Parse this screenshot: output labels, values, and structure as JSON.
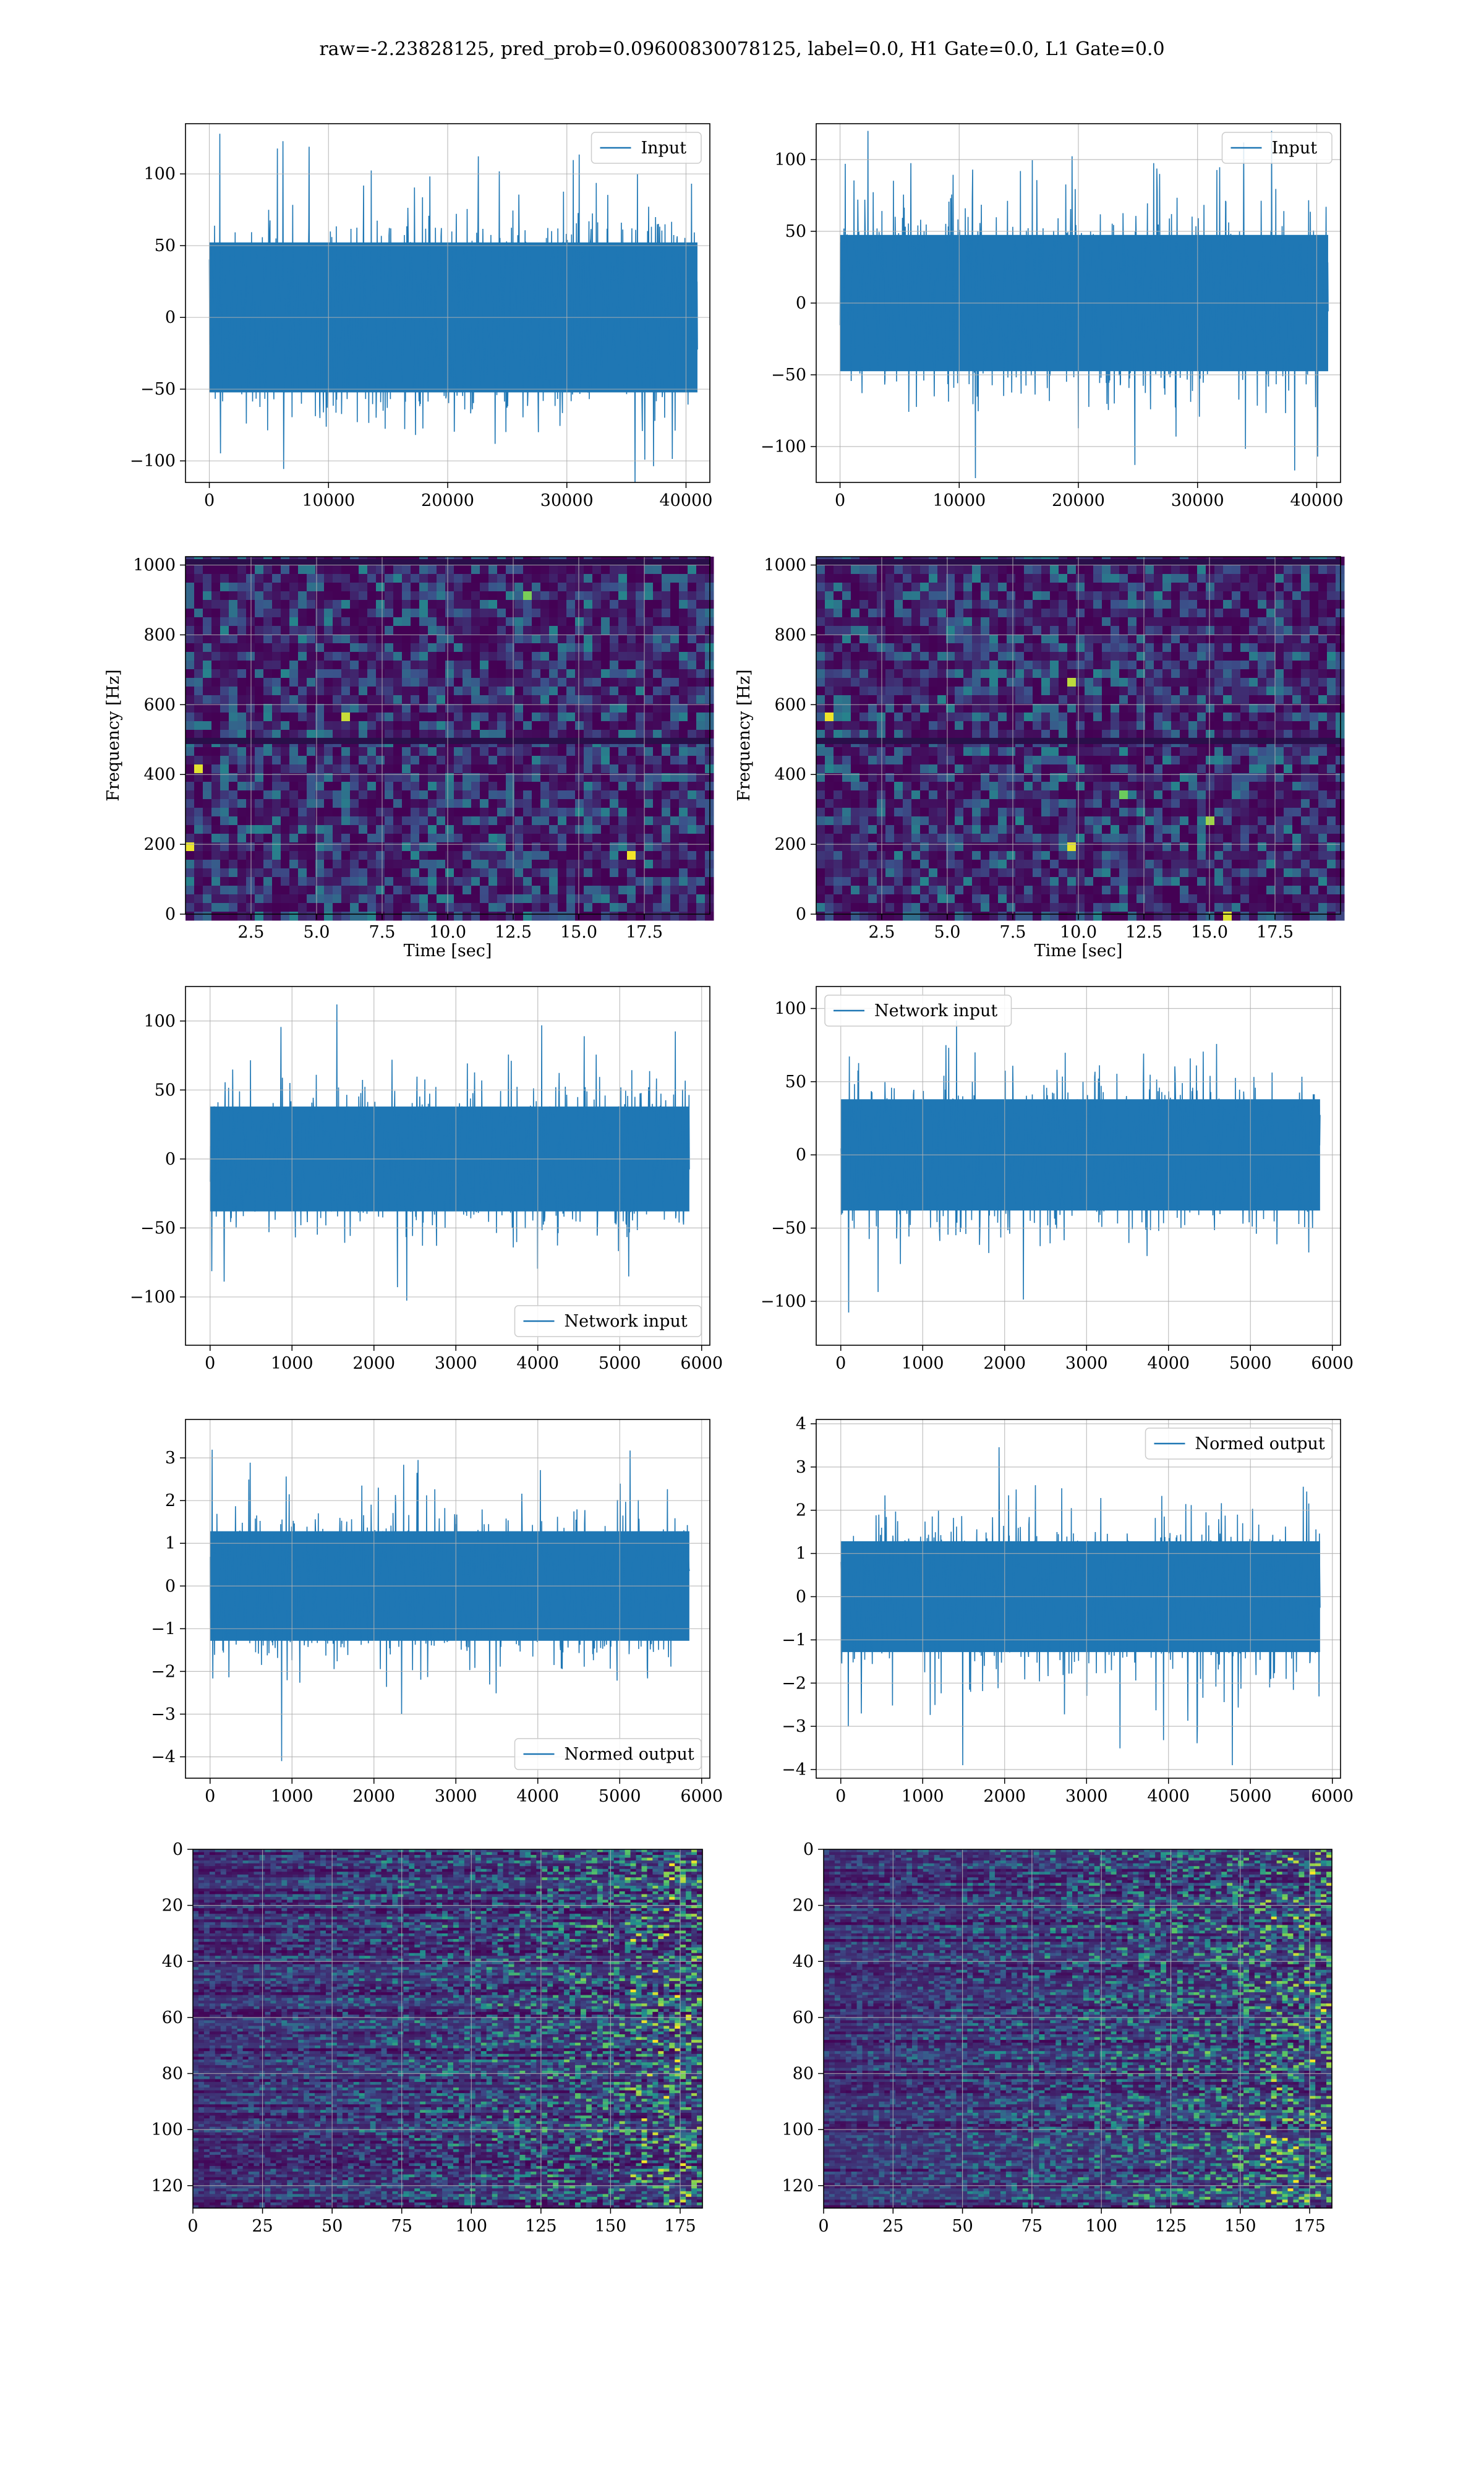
{
  "figure": {
    "suptitle": "raw=-2.23828125, pred_prob=0.09600830078125, label=0.0, H1 Gate=0.0, L1 Gate=0.0",
    "line_color": "#1f77b4",
    "grid_color": "#b0b0b0"
  },
  "chart_data": [
    {
      "id": "p1",
      "type": "line",
      "xlim": [
        -2000,
        42000
      ],
      "ylim": [
        -115,
        135
      ],
      "xticks": [
        0,
        10000,
        20000,
        30000,
        40000
      ],
      "yticks": [
        -100,
        -50,
        0,
        50,
        100
      ],
      "legend": {
        "label": "Input",
        "position": "top-right"
      },
      "xlabel": "",
      "ylabel": "",
      "grid": true,
      "series": [
        {
          "name": "Input",
          "x_range": [
            0,
            40960
          ],
          "core_amplitude": 55,
          "envelope": [
            -115,
            128
          ]
        }
      ]
    },
    {
      "id": "p2",
      "type": "line",
      "xlim": [
        -2000,
        42000
      ],
      "ylim": [
        -125,
        125
      ],
      "xticks": [
        0,
        10000,
        20000,
        30000,
        40000
      ],
      "yticks": [
        -100,
        -50,
        0,
        50,
        100
      ],
      "legend": {
        "label": "Input",
        "position": "top-right"
      },
      "xlabel": "",
      "ylabel": "",
      "grid": true,
      "series": [
        {
          "name": "Input",
          "x_range": [
            0,
            40960
          ],
          "core_amplitude": 50,
          "envelope": [
            -122,
            120
          ]
        }
      ]
    },
    {
      "id": "p3",
      "type": "heatmap",
      "xlim": [
        0,
        20
      ],
      "ylim": [
        0,
        1024
      ],
      "xticks": [
        2.5,
        5.0,
        7.5,
        10.0,
        12.5,
        15.0,
        17.5
      ],
      "xtick_labels": [
        "2.5",
        "5.0",
        "7.5",
        "10.0",
        "12.5",
        "15.0",
        "17.5"
      ],
      "yticks": [
        0,
        200,
        400,
        600,
        800,
        1000
      ],
      "xlabel": "Time [sec]",
      "ylabel": "Frequency [Hz]",
      "grid": true,
      "colormap": "viridis"
    },
    {
      "id": "p4",
      "type": "heatmap",
      "xlim": [
        0,
        20
      ],
      "ylim": [
        0,
        1024
      ],
      "xticks": [
        2.5,
        5.0,
        7.5,
        10.0,
        12.5,
        15.0,
        17.5
      ],
      "xtick_labels": [
        "2.5",
        "5.0",
        "7.5",
        "10.0",
        "12.5",
        "15.0",
        "17.5"
      ],
      "yticks": [
        0,
        200,
        400,
        600,
        800,
        1000
      ],
      "xlabel": "Time [sec]",
      "ylabel": "Frequency [Hz]",
      "grid": true,
      "colormap": "viridis"
    },
    {
      "id": "p5",
      "type": "line",
      "xlim": [
        -300,
        6100
      ],
      "ylim": [
        -135,
        125
      ],
      "xticks": [
        0,
        1000,
        2000,
        3000,
        4000,
        5000,
        6000
      ],
      "yticks": [
        -100,
        -50,
        0,
        50,
        100
      ],
      "legend": {
        "label": "Network input",
        "position": "bottom-right"
      },
      "xlabel": "",
      "ylabel": "",
      "grid": true,
      "series": [
        {
          "name": "Network input",
          "x_range": [
            0,
            5850
          ],
          "core_amplitude": 40,
          "envelope": [
            -125,
            112
          ]
        }
      ]
    },
    {
      "id": "p6",
      "type": "line",
      "xlim": [
        -300,
        6100
      ],
      "ylim": [
        -130,
        115
      ],
      "xticks": [
        0,
        1000,
        2000,
        3000,
        4000,
        5000,
        6000
      ],
      "yticks": [
        -100,
        -50,
        0,
        50,
        100
      ],
      "legend": {
        "label": "Network input",
        "position": "top-left"
      },
      "xlabel": "",
      "ylabel": "",
      "grid": true,
      "series": [
        {
          "name": "Network input",
          "x_range": [
            0,
            5850
          ],
          "core_amplitude": 40,
          "envelope": [
            -120,
            112
          ]
        }
      ]
    },
    {
      "id": "p7",
      "type": "line",
      "xlim": [
        -300,
        6100
      ],
      "ylim": [
        -4.5,
        3.9
      ],
      "xticks": [
        0,
        1000,
        2000,
        3000,
        4000,
        5000,
        6000
      ],
      "yticks": [
        -4,
        -3,
        -2,
        -1,
        0,
        1,
        2,
        3
      ],
      "legend": {
        "label": "Normed output",
        "position": "bottom-right"
      },
      "xlabel": "",
      "ylabel": "",
      "grid": true,
      "series": [
        {
          "name": "Normed output",
          "x_range": [
            0,
            5850
          ],
          "core_amplitude": 1.35,
          "envelope": [
            -4.1,
            3.6
          ]
        }
      ]
    },
    {
      "id": "p8",
      "type": "line",
      "xlim": [
        -300,
        6100
      ],
      "ylim": [
        -4.2,
        4.1
      ],
      "xticks": [
        0,
        1000,
        2000,
        3000,
        4000,
        5000,
        6000
      ],
      "yticks": [
        -4,
        -3,
        -2,
        -1,
        0,
        1,
        2,
        3,
        4
      ],
      "legend": {
        "label": "Normed output",
        "position": "top-right"
      },
      "xlabel": "",
      "ylabel": "",
      "grid": true,
      "series": [
        {
          "name": "Normed output",
          "x_range": [
            0,
            5850
          ],
          "core_amplitude": 1.35,
          "envelope": [
            -3.9,
            3.7
          ]
        }
      ]
    },
    {
      "id": "p9",
      "type": "heatmap",
      "xlim": [
        0,
        183
      ],
      "ylim": [
        128,
        0
      ],
      "xticks": [
        0,
        25,
        50,
        75,
        100,
        125,
        150,
        175
      ],
      "yticks": [
        0,
        20,
        40,
        60,
        80,
        100,
        120
      ],
      "xlabel": "",
      "ylabel": "",
      "grid": true,
      "colormap": "viridis",
      "rows": 128,
      "cols": 183
    },
    {
      "id": "p10",
      "type": "heatmap",
      "xlim": [
        0,
        183
      ],
      "ylim": [
        128,
        0
      ],
      "xticks": [
        0,
        25,
        50,
        75,
        100,
        125,
        150,
        175
      ],
      "yticks": [
        0,
        20,
        40,
        60,
        80,
        100,
        120
      ],
      "xlabel": "",
      "ylabel": "",
      "grid": true,
      "colormap": "viridis",
      "rows": 128,
      "cols": 183
    }
  ]
}
